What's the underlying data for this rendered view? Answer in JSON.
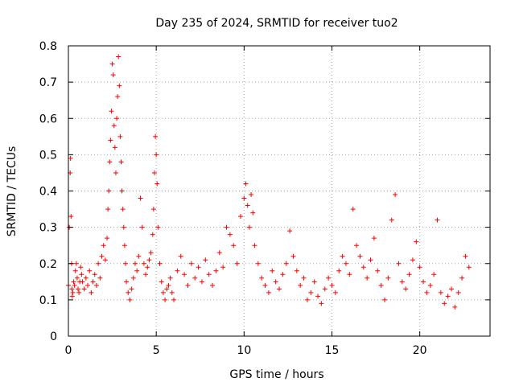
{
  "chart_data": {
    "type": "scatter",
    "title": "Day 235 of 2024, SRMTID for receiver tuo2",
    "xlabel": "GPS time / hours",
    "ylabel": "SRMTID / TECUs",
    "xlim": [
      0,
      24
    ],
    "ylim": [
      0,
      0.8
    ],
    "xticks": [
      0,
      5,
      10,
      15,
      20
    ],
    "yticks": [
      0,
      0.1,
      0.2,
      0.3,
      0.4,
      0.5,
      0.6,
      0.7,
      0.8
    ],
    "xtick_labels": [
      "0",
      "5",
      "10",
      "15",
      "20"
    ],
    "ytick_labels": [
      "0",
      "0.1",
      "0.2",
      "0.3",
      "0.4",
      "0.5",
      "0.6",
      "0.7",
      "0.8"
    ],
    "grid": true,
    "marker": "+",
    "marker_color": "#ff0000",
    "series": [
      {
        "name": "SRMTID",
        "x": [
          0.0,
          0.05,
          0.1,
          0.12,
          0.15,
          0.18,
          0.2,
          0.22,
          0.25,
          0.3,
          0.35,
          0.4,
          0.45,
          0.5,
          0.55,
          0.6,
          0.65,
          0.7,
          0.75,
          0.8,
          0.9,
          1.0,
          1.1,
          1.2,
          1.3,
          1.4,
          1.5,
          1.6,
          1.7,
          1.8,
          1.9,
          2.0,
          2.1,
          2.2,
          2.25,
          2.3,
          2.35,
          2.4,
          2.45,
          2.5,
          2.55,
          2.6,
          2.65,
          2.7,
          2.75,
          2.8,
          2.85,
          2.9,
          2.95,
          3.0,
          3.05,
          3.1,
          3.15,
          3.2,
          3.25,
          3.3,
          3.4,
          3.5,
          3.6,
          3.7,
          3.8,
          3.9,
          4.0,
          4.1,
          4.2,
          4.3,
          4.4,
          4.5,
          4.6,
          4.7,
          4.8,
          4.85,
          4.9,
          4.95,
          5.0,
          5.05,
          5.1,
          5.2,
          5.3,
          5.4,
          5.5,
          5.6,
          5.7,
          5.8,
          5.9,
          6.0,
          6.2,
          6.4,
          6.6,
          6.8,
          7.0,
          7.2,
          7.4,
          7.6,
          7.8,
          8.0,
          8.2,
          8.4,
          8.6,
          8.8,
          9.0,
          9.2,
          9.4,
          9.6,
          9.8,
          10.0,
          10.1,
          10.2,
          10.3,
          10.4,
          10.5,
          10.6,
          10.8,
          11.0,
          11.2,
          11.4,
          11.6,
          11.8,
          12.0,
          12.2,
          12.4,
          12.6,
          12.8,
          13.0,
          13.2,
          13.4,
          13.6,
          13.8,
          14.0,
          14.2,
          14.4,
          14.6,
          14.8,
          15.0,
          15.2,
          15.4,
          15.6,
          15.8,
          16.0,
          16.2,
          16.4,
          16.6,
          16.8,
          17.0,
          17.2,
          17.4,
          17.6,
          17.8,
          18.0,
          18.2,
          18.4,
          18.6,
          18.8,
          19.0,
          19.2,
          19.4,
          19.6,
          19.8,
          20.0,
          20.2,
          20.4,
          20.6,
          20.8,
          21.0,
          21.2,
          21.4,
          21.6,
          21.8,
          22.0,
          22.2,
          22.4,
          22.6,
          22.8
        ],
        "y": [
          0.14,
          0.3,
          0.45,
          0.49,
          0.33,
          0.2,
          0.13,
          0.11,
          0.12,
          0.15,
          0.14,
          0.18,
          0.2,
          0.16,
          0.13,
          0.12,
          0.15,
          0.19,
          0.17,
          0.15,
          0.13,
          0.16,
          0.14,
          0.18,
          0.12,
          0.15,
          0.17,
          0.14,
          0.2,
          0.16,
          0.22,
          0.25,
          0.21,
          0.27,
          0.35,
          0.4,
          0.48,
          0.54,
          0.62,
          0.75,
          0.72,
          0.58,
          0.52,
          0.45,
          0.6,
          0.66,
          0.77,
          0.69,
          0.55,
          0.48,
          0.4,
          0.35,
          0.3,
          0.25,
          0.2,
          0.15,
          0.12,
          0.1,
          0.13,
          0.16,
          0.2,
          0.18,
          0.22,
          0.38,
          0.3,
          0.2,
          0.17,
          0.19,
          0.21,
          0.23,
          0.28,
          0.35,
          0.45,
          0.55,
          0.5,
          0.42,
          0.3,
          0.2,
          0.15,
          0.12,
          0.1,
          0.13,
          0.14,
          0.16,
          0.12,
          0.1,
          0.18,
          0.22,
          0.17,
          0.14,
          0.2,
          0.16,
          0.19,
          0.15,
          0.21,
          0.17,
          0.14,
          0.18,
          0.23,
          0.19,
          0.3,
          0.28,
          0.25,
          0.2,
          0.33,
          0.38,
          0.42,
          0.36,
          0.3,
          0.39,
          0.34,
          0.25,
          0.2,
          0.16,
          0.14,
          0.12,
          0.18,
          0.15,
          0.13,
          0.17,
          0.2,
          0.29,
          0.22,
          0.18,
          0.14,
          0.16,
          0.1,
          0.12,
          0.15,
          0.11,
          0.09,
          0.13,
          0.16,
          0.14,
          0.12,
          0.18,
          0.22,
          0.2,
          0.17,
          0.35,
          0.25,
          0.22,
          0.19,
          0.16,
          0.21,
          0.27,
          0.18,
          0.14,
          0.1,
          0.16,
          0.32,
          0.39,
          0.2,
          0.15,
          0.13,
          0.17,
          0.21,
          0.26,
          0.19,
          0.15,
          0.12,
          0.14,
          0.17,
          0.32,
          0.12,
          0.09,
          0.11,
          0.13,
          0.08,
          0.12,
          0.16,
          0.22,
          0.19
        ]
      }
    ]
  }
}
